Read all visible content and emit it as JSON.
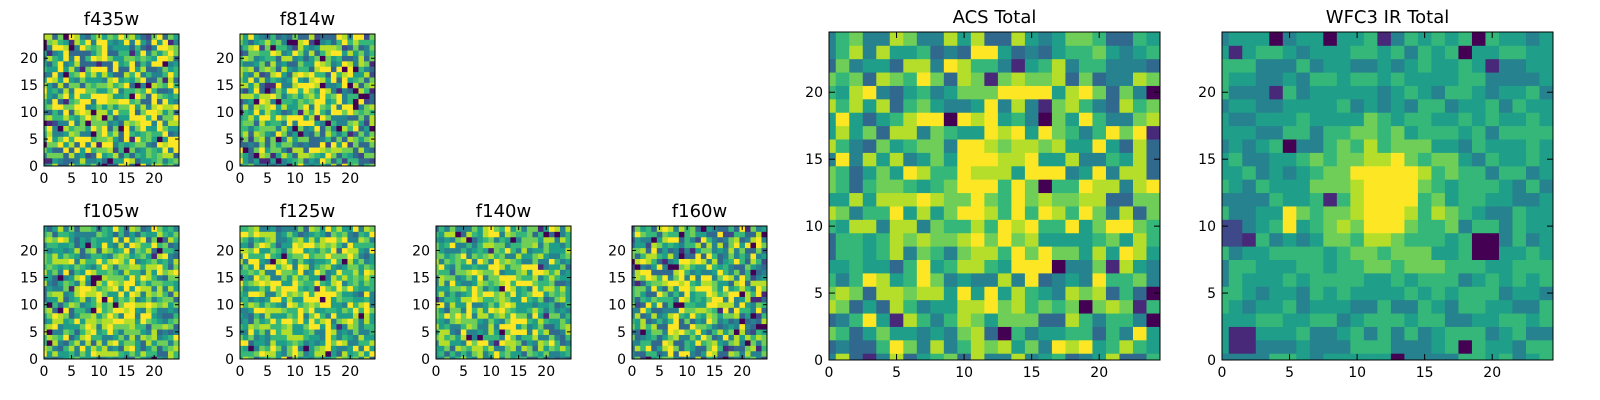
{
  "colors": {
    "viridis": [
      "#440154",
      "#482878",
      "#3e4989",
      "#31688e",
      "#26828e",
      "#1f9e89",
      "#35b779",
      "#6ece58",
      "#b5de2b",
      "#fde725"
    ],
    "frame": "#000000",
    "background": "#ffffff"
  },
  "chart_data": [
    {
      "type": "heatmap",
      "title": "f435w",
      "size": 25,
      "value_range": [
        0,
        1
      ],
      "xticks": [
        0,
        5,
        10,
        15,
        20
      ],
      "yticks": [
        0,
        5,
        10,
        15,
        20
      ],
      "seed": 11,
      "base": 0.66,
      "noise": 0.38,
      "peak": 0.08,
      "width": 4,
      "dip_rate": 0.05,
      "blocks": []
    },
    {
      "type": "heatmap",
      "title": "f814w",
      "size": 25,
      "value_range": [
        0,
        1
      ],
      "xticks": [
        0,
        5,
        10,
        15,
        20
      ],
      "yticks": [
        0,
        5,
        10,
        15,
        20
      ],
      "seed": 23,
      "base": 0.62,
      "noise": 0.36,
      "peak": 0.22,
      "width": 4,
      "dip_rate": 0.05,
      "blocks": []
    },
    {
      "type": "heatmap",
      "title": "f105w",
      "size": 25,
      "value_range": [
        0,
        1
      ],
      "xticks": [
        0,
        5,
        10,
        15,
        20
      ],
      "yticks": [
        0,
        5,
        10,
        15,
        20
      ],
      "seed": 37,
      "base": 0.62,
      "noise": 0.3,
      "peak": 0.18,
      "width": 5,
      "dip_rate": 0.03,
      "blocks": []
    },
    {
      "type": "heatmap",
      "title": "f125w",
      "size": 25,
      "value_range": [
        0,
        1
      ],
      "xticks": [
        0,
        5,
        10,
        15,
        20
      ],
      "yticks": [
        0,
        5,
        10,
        15,
        20
      ],
      "seed": 41,
      "base": 0.66,
      "noise": 0.3,
      "peak": 0.12,
      "width": 5,
      "dip_rate": 0.02,
      "blocks": []
    },
    {
      "type": "heatmap",
      "title": "f140w",
      "size": 25,
      "value_range": [
        0,
        1
      ],
      "xticks": [
        0,
        5,
        10,
        15,
        20
      ],
      "yticks": [
        0,
        5,
        10,
        15,
        20
      ],
      "seed": 53,
      "base": 0.64,
      "noise": 0.3,
      "peak": 0.16,
      "width": 5,
      "dip_rate": 0.03,
      "blocks": []
    },
    {
      "type": "heatmap",
      "title": "f160w",
      "size": 25,
      "value_range": [
        0,
        1
      ],
      "xticks": [
        0,
        5,
        10,
        15,
        20
      ],
      "yticks": [
        0,
        5,
        10,
        15,
        20
      ],
      "seed": 67,
      "base": 0.6,
      "noise": 0.34,
      "peak": 0.2,
      "width": 5,
      "dip_rate": 0.05,
      "blocks": []
    },
    {
      "type": "heatmap",
      "title": "ACS Total",
      "size": 25,
      "value_range": [
        0,
        1
      ],
      "xticks": [
        0,
        5,
        10,
        15,
        20
      ],
      "yticks": [
        0,
        5,
        10,
        15,
        20
      ],
      "seed": 79,
      "base": 0.63,
      "noise": 0.3,
      "peak": 0.3,
      "width": 4,
      "dip_rate": 0.035,
      "blocks": []
    },
    {
      "type": "heatmap",
      "title": "WFC3 IR Total",
      "size": 25,
      "value_range": [
        0,
        1
      ],
      "xticks": [
        0,
        5,
        10,
        15,
        20
      ],
      "yticks": [
        0,
        5,
        10,
        15,
        20
      ],
      "seed": 97,
      "base": 0.55,
      "noise": 0.12,
      "peak": 0.42,
      "width": 3,
      "dip_rate": 0.02,
      "blocks": [
        {
          "x": 19,
          "y": 8,
          "w": 2,
          "h": 2,
          "v": 0.0
        },
        {
          "x": 1,
          "y": 1,
          "w": 2,
          "h": 2,
          "v": 0.15
        },
        {
          "x": 11,
          "y": 10,
          "w": 3,
          "h": 5,
          "v": 1.0
        },
        {
          "x": 5,
          "y": 10,
          "w": 1,
          "h": 2,
          "v": 0.95
        },
        {
          "x": 0,
          "y": 9,
          "w": 2,
          "h": 2,
          "v": 0.2
        }
      ]
    }
  ]
}
